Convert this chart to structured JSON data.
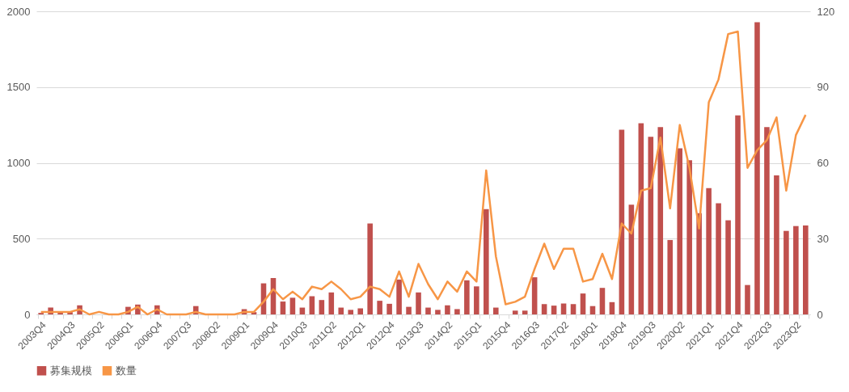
{
  "chart_data": {
    "type": "bar",
    "categories": [
      "2003Q4",
      null,
      null,
      "2004Q3",
      null,
      null,
      "2005Q2",
      null,
      null,
      "2006Q1",
      null,
      null,
      "2006Q4",
      null,
      null,
      "2007Q3",
      null,
      null,
      "2008Q2",
      null,
      null,
      "2009Q1",
      null,
      null,
      "2009Q4",
      null,
      null,
      "2010Q3",
      null,
      null,
      "2011Q2",
      null,
      null,
      "2012Q1",
      null,
      null,
      "2012Q4",
      null,
      null,
      "2013Q3",
      null,
      null,
      "2014Q2",
      null,
      null,
      "2015Q1",
      null,
      null,
      "2015Q4",
      null,
      null,
      "2016Q3",
      null,
      null,
      "2017Q2",
      null,
      null,
      "2018Q1",
      null,
      null,
      "2018Q4",
      null,
      null,
      "2019Q3",
      null,
      null,
      "2020Q2",
      null,
      null,
      "2021Q1",
      null,
      null,
      "2021Q4",
      null,
      null,
      "2022Q3",
      null,
      null,
      "2023Q2",
      null
    ],
    "series": [
      {
        "name": "募集规模",
        "color": "#c0504d",
        "values": [
          10,
          45,
          15,
          15,
          60,
          0,
          0,
          0,
          0,
          50,
          65,
          0,
          60,
          0,
          0,
          0,
          55,
          0,
          0,
          0,
          0,
          35,
          15,
          205,
          240,
          85,
          110,
          45,
          120,
          95,
          145,
          45,
          30,
          40,
          600,
          90,
          70,
          230,
          50,
          145,
          45,
          30,
          60,
          35,
          225,
          185,
          695,
          45,
          0,
          25,
          25,
          245,
          68,
          58,
          72,
          68,
          138,
          55,
          175,
          81,
          1219,
          724,
          1262,
          1172,
          1236,
          491,
          1096,
          1017,
          668,
          834,
          734,
          621,
          1313,
          194,
          1928,
          1236,
          917,
          551,
          583,
          587
        ]
      },
      {
        "name": "数量",
        "type": "line",
        "axis": "y2",
        "color": "#f79646",
        "values": [
          1,
          1,
          1,
          1,
          2,
          0,
          1,
          0,
          0,
          1,
          3,
          0,
          2,
          0,
          0,
          0,
          1,
          0,
          0,
          0,
          0,
          1,
          1,
          5,
          10,
          6,
          9,
          6,
          11,
          10,
          13,
          10,
          6,
          7,
          11,
          10,
          7,
          17,
          7,
          20,
          12,
          6,
          13,
          9,
          17,
          13,
          57,
          23,
          4,
          5,
          7,
          18,
          28,
          18,
          26,
          26,
          13,
          14,
          24,
          14,
          36,
          32,
          49,
          50,
          70,
          42,
          75,
          58,
          34,
          84,
          93,
          111,
          112,
          58,
          65,
          69,
          78,
          49,
          71,
          79
        ]
      }
    ],
    "ylim": [
      0,
      2000
    ],
    "yticks": [
      0,
      500,
      1000,
      1500,
      2000
    ],
    "y2lim": [
      0,
      120
    ],
    "y2ticks": [
      0,
      30,
      60,
      90,
      120
    ],
    "grid": "y",
    "legend": "bottom",
    "marker": "none",
    "line_style": "solid"
  }
}
